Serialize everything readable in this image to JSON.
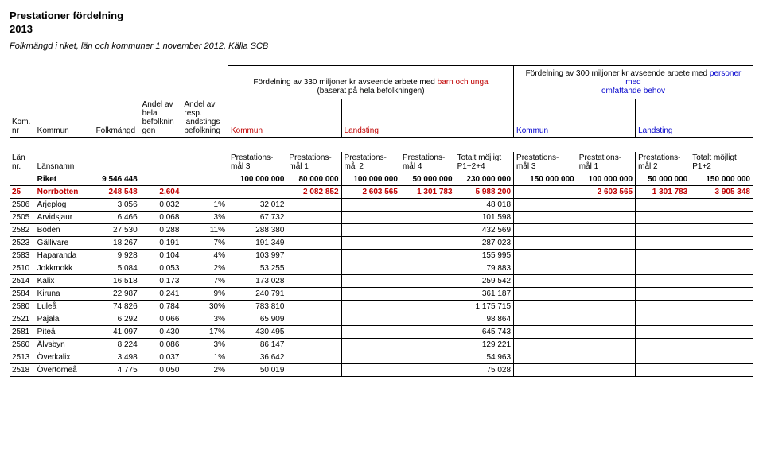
{
  "title_line1": "Prestationer fördelning",
  "title_line2": "2013",
  "subtitle": "Folkmängd i riket, län och kommuner 1 november 2012, Källa SCB",
  "group1": {
    "line1_a": "Fördelning av 330 miljoner kr avseende arbete med ",
    "line1_b": "barn och unga",
    "line2": "(baserat på hela befolkningen)"
  },
  "group2": {
    "line1_a": "Fördelning av 300 miljoner kr avseende arbete med ",
    "line1_b": "personer med",
    "line2": "omfattande behov"
  },
  "colheads": {
    "komnr": "Kom.\nnr",
    "kommun": "Kommun",
    "folkm": "Folkmängd",
    "andel1": "Andel av\nhela\nbefolknin\ngen",
    "andel2": "Andel av\nresp.\nlandstings\nbefolkning",
    "kommun2": "Kommun",
    "landsting": "Landsting",
    "kommun3": "Kommun",
    "landsting2": "Landsting"
  },
  "subheads": {
    "lan_nr": "Län nr.",
    "lansnamn": "Länsnamn",
    "p3": "Prestations-\nmål 3",
    "p1": "Prestations-\nmål 1",
    "p2": "Prestations-\nmål 2",
    "p4": "Prestations-\nmål 4",
    "tot124": "Totalt möjligt\nP1+2+4",
    "p3b": "Prestations-\nmål 3",
    "p1b": "Prestations-\nmål 1",
    "p2b": "Prestations-\nmål 2",
    "tot12": "Totalt möjligt\nP1+2"
  },
  "riket": {
    "label": "Riket",
    "folkm": "9 546 448",
    "v5": "100 000 000",
    "v6": "80 000 000",
    "v7": "100 000 000",
    "v8": "50 000 000",
    "v9": "230 000 000",
    "v10": "150 000 000",
    "v11": "100 000 000",
    "v12": "50 000 000",
    "v13": "150 000 000"
  },
  "norrbotten": {
    "nr": "25",
    "name": "Norrbotten",
    "folkm": "248 548",
    "andel1": "2,604",
    "v6": "2 082 852",
    "v7": "2 603 565",
    "v8": "1 301 783",
    "v9": "5 988 200",
    "v11": "2 603 565",
    "v12": "1 301 783",
    "v13": "3 905 348"
  },
  "rows": [
    {
      "nr": "2506",
      "name": "Arjeplog",
      "folkm": "3 056",
      "a1": "0,032",
      "a2": "1%",
      "v5": "32 012",
      "v9": "48 018"
    },
    {
      "nr": "2505",
      "name": "Arvidsjaur",
      "folkm": "6 466",
      "a1": "0,068",
      "a2": "3%",
      "v5": "67 732",
      "v9": "101 598"
    },
    {
      "nr": "2582",
      "name": "Boden",
      "folkm": "27 530",
      "a1": "0,288",
      "a2": "11%",
      "v5": "288 380",
      "v9": "432 569"
    },
    {
      "nr": "2523",
      "name": "Gällivare",
      "folkm": "18 267",
      "a1": "0,191",
      "a2": "7%",
      "v5": "191 349",
      "v9": "287 023"
    },
    {
      "nr": "2583",
      "name": "Haparanda",
      "folkm": "9 928",
      "a1": "0,104",
      "a2": "4%",
      "v5": "103 997",
      "v9": "155 995"
    },
    {
      "nr": "2510",
      "name": "Jokkmokk",
      "folkm": "5 084",
      "a1": "0,053",
      "a2": "2%",
      "v5": "53 255",
      "v9": "79 883"
    },
    {
      "nr": "2514",
      "name": "Kalix",
      "folkm": "16 518",
      "a1": "0,173",
      "a2": "7%",
      "v5": "173 028",
      "v9": "259 542"
    },
    {
      "nr": "2584",
      "name": "Kiruna",
      "folkm": "22 987",
      "a1": "0,241",
      "a2": "9%",
      "v5": "240 791",
      "v9": "361 187"
    },
    {
      "nr": "2580",
      "name": "Luleå",
      "folkm": "74 826",
      "a1": "0,784",
      "a2": "30%",
      "v5": "783 810",
      "v9": "1 175 715"
    },
    {
      "nr": "2521",
      "name": "Pajala",
      "folkm": "6 292",
      "a1": "0,066",
      "a2": "3%",
      "v5": "65 909",
      "v9": "98 864"
    },
    {
      "nr": "2581",
      "name": "Piteå",
      "folkm": "41 097",
      "a1": "0,430",
      "a2": "17%",
      "v5": "430 495",
      "v9": "645 743"
    },
    {
      "nr": "2560",
      "name": "Älvsbyn",
      "folkm": "8 224",
      "a1": "0,086",
      "a2": "3%",
      "v5": "86 147",
      "v9": "129 221"
    },
    {
      "nr": "2513",
      "name": "Överkalix",
      "folkm": "3 498",
      "a1": "0,037",
      "a2": "1%",
      "v5": "36 642",
      "v9": "54 963"
    },
    {
      "nr": "2518",
      "name": "Övertorneå",
      "folkm": "4 775",
      "a1": "0,050",
      "a2": "2%",
      "v5": "50 019",
      "v9": "75 028"
    }
  ]
}
